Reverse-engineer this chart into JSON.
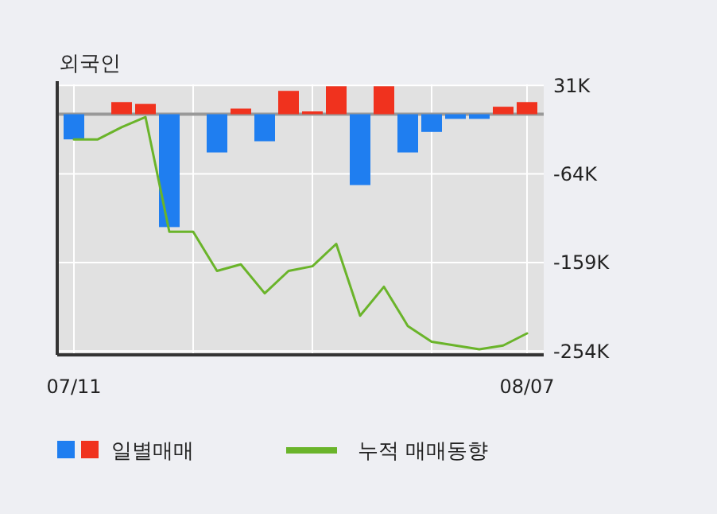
{
  "chart_data": {
    "type": "bar",
    "title": "외국인",
    "categories": [
      "07/11",
      null,
      null,
      null,
      null,
      null,
      null,
      null,
      null,
      null,
      null,
      null,
      null,
      null,
      null,
      null,
      null,
      null,
      null,
      "08/07"
    ],
    "series": [
      {
        "name": "일별매매",
        "colors": [
          "#1f7ef0",
          "#1f7ef0",
          "#f0321e",
          "#f0321e",
          "#1f7ef0",
          "#1f7ef0",
          "#1f7ef0",
          "#f0321e",
          "#1f7ef0",
          "#f0321e",
          "#f0321e",
          "#f0321e",
          "#1f7ef0",
          "#f0321e",
          "#1f7ef0",
          "#1f7ef0",
          "#1f7ef0",
          "#1f7ef0",
          "#f0321e",
          "#f0321e"
        ],
        "values": [
          -27,
          0,
          13,
          11,
          -121,
          0,
          -41,
          6,
          -29,
          25,
          3,
          30,
          -76,
          30,
          -41,
          -19,
          -5,
          -5,
          8,
          13
        ]
      },
      {
        "name": "누적 매매동향",
        "type": "line",
        "color": "#6ab42a",
        "values": [
          -27,
          -27,
          -14,
          -3,
          -126,
          -126,
          -168,
          -161,
          -192,
          -168,
          -163,
          -139,
          -216,
          -185,
          -227,
          -244,
          -248,
          -252,
          -248,
          -235
        ]
      }
    ],
    "ylim": [
      -258,
      32
    ],
    "yticks": [
      {
        "value": 31,
        "label": "31K"
      },
      {
        "value": -64,
        "label": "-64K"
      },
      {
        "value": -159,
        "label": "-159K"
      },
      {
        "value": -254,
        "label": "-254K"
      }
    ],
    "ref_lines": [
      {
        "axis": "y",
        "value": 0,
        "color": "#999999"
      }
    ],
    "grid": true,
    "legend": "bottom"
  }
}
